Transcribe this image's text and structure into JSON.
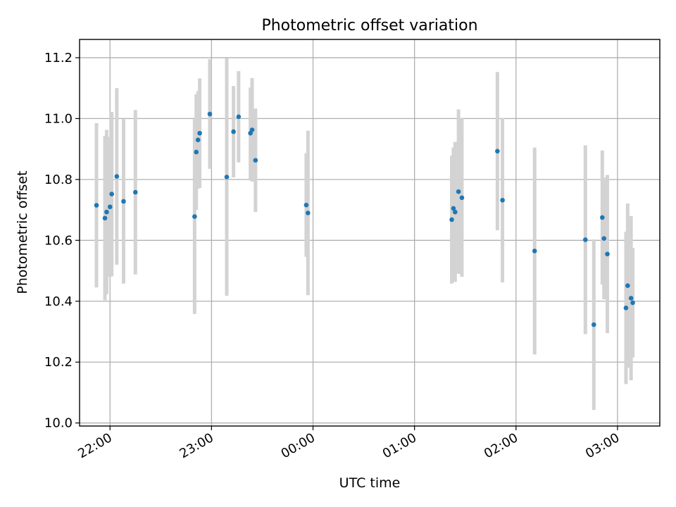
{
  "chart_data": {
    "type": "scatter",
    "title": "Photometric offset variation",
    "xlabel": "UTC time",
    "ylabel": "Photometric offset",
    "x_unit": "UTC time (HH:MM)",
    "xlim": [
      "21:42",
      "03:25"
    ],
    "ylim": [
      9.99,
      11.26
    ],
    "grid": true,
    "x_ticks": [
      "22:00",
      "23:00",
      "00:00",
      "01:00",
      "02:00",
      "03:00"
    ],
    "y_ticks": [
      "10.0",
      "10.2",
      "10.4",
      "10.6",
      "10.8",
      "11.0",
      "11.2"
    ],
    "colors": {
      "marker": "#1f77b4",
      "errorbar": "#d3d3d3",
      "grid": "#b0b0b0"
    },
    "points": [
      {
        "x": "21:52",
        "y": 10.715,
        "err": 0.27
      },
      {
        "x": "21:57",
        "y": 10.673,
        "err": 0.27
      },
      {
        "x": "21:58",
        "y": 10.693,
        "err": 0.27
      },
      {
        "x": "22:00",
        "y": 10.71,
        "err": 0.23
      },
      {
        "x": "22:01",
        "y": 10.752,
        "err": 0.27
      },
      {
        "x": "22:04",
        "y": 10.81,
        "err": 0.29
      },
      {
        "x": "22:08",
        "y": 10.728,
        "err": 0.27
      },
      {
        "x": "22:15",
        "y": 10.758,
        "err": 0.27
      },
      {
        "x": "22:50",
        "y": 10.678,
        "err": 0.32
      },
      {
        "x": "22:51",
        "y": 10.89,
        "err": 0.19
      },
      {
        "x": "22:52",
        "y": 10.93,
        "err": 0.16
      },
      {
        "x": "22:53",
        "y": 10.952,
        "err": 0.18
      },
      {
        "x": "22:59",
        "y": 11.015,
        "err": 0.18
      },
      {
        "x": "23:09",
        "y": 10.808,
        "err": 0.39
      },
      {
        "x": "23:13",
        "y": 10.957,
        "err": 0.15
      },
      {
        "x": "23:16",
        "y": 11.006,
        "err": 0.15
      },
      {
        "x": "23:23",
        "y": 10.952,
        "err": 0.15
      },
      {
        "x": "23:24",
        "y": 10.963,
        "err": 0.17
      },
      {
        "x": "23:26",
        "y": 10.863,
        "err": 0.17
      },
      {
        "x": "23:56",
        "y": 10.716,
        "err": 0.17
      },
      {
        "x": "23:57",
        "y": 10.69,
        "err": 0.27
      },
      {
        "x": "01:22",
        "y": 10.668,
        "err": 0.21
      },
      {
        "x": "01:23",
        "y": 10.705,
        "err": 0.2
      },
      {
        "x": "01:24",
        "y": 10.693,
        "err": 0.23
      },
      {
        "x": "01:26",
        "y": 10.76,
        "err": 0.27
      },
      {
        "x": "01:28",
        "y": 10.74,
        "err": 0.26
      },
      {
        "x": "01:49",
        "y": 10.893,
        "err": 0.26
      },
      {
        "x": "01:52",
        "y": 10.732,
        "err": 0.27
      },
      {
        "x": "02:11",
        "y": 10.565,
        "err": 0.34
      },
      {
        "x": "02:41",
        "y": 10.602,
        "err": 0.31
      },
      {
        "x": "02:46",
        "y": 10.323,
        "err": 0.28
      },
      {
        "x": "02:51",
        "y": 10.675,
        "err": 0.22
      },
      {
        "x": "02:52",
        "y": 10.606,
        "err": 0.2
      },
      {
        "x": "02:54",
        "y": 10.555,
        "err": 0.26
      },
      {
        "x": "03:05",
        "y": 10.378,
        "err": 0.25
      },
      {
        "x": "03:06",
        "y": 10.451,
        "err": 0.27
      },
      {
        "x": "03:08",
        "y": 10.41,
        "err": 0.27
      },
      {
        "x": "03:09",
        "y": 10.395,
        "err": 0.18
      }
    ]
  }
}
